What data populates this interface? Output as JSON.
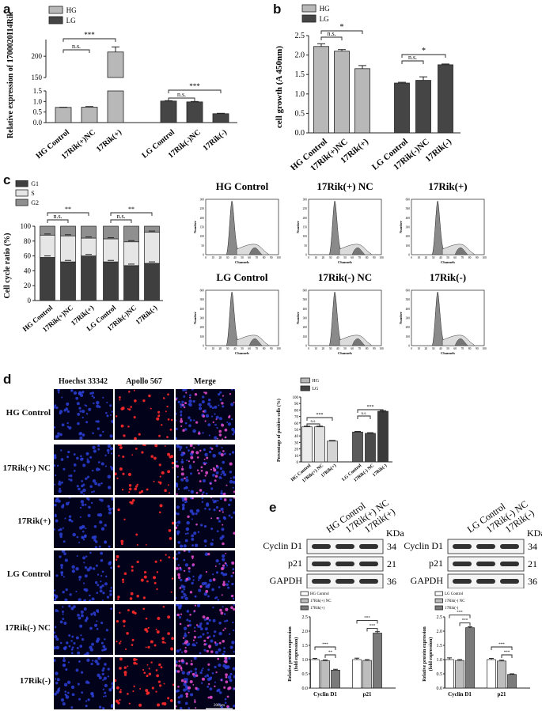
{
  "panels": {
    "a": "a",
    "b": "b",
    "c": "c",
    "d": "d",
    "e": "e"
  },
  "legend": {
    "hg": "HG",
    "lg": "LG",
    "g1": "G1",
    "s": "S",
    "g2": "G2"
  },
  "colors": {
    "hg": "#b8b8b8",
    "lg": "#454545",
    "g1": "#3f3f3f",
    "s": "#e6e6e6",
    "g2": "#8f8f8f",
    "white": "#ffffff",
    "dark": "#3a3a3a",
    "gray": "#9a9a9a"
  },
  "chart_data": [
    {
      "id": "a",
      "type": "bar",
      "ylabel": "Relative expression of 1700020I14Rik",
      "categories": [
        "HG Control",
        "17Rik(+)NC",
        "17Rik(+)",
        "LG Control",
        "17Rik(-)NC",
        "17Rik(-)"
      ],
      "values": [
        0.72,
        0.73,
        210,
        1.02,
        0.98,
        0.42
      ],
      "errors": [
        0.01,
        0.03,
        12,
        0.02,
        0.02,
        0.02
      ],
      "groups": [
        "HG",
        "HG",
        "HG",
        "LG",
        "LG",
        "LG"
      ],
      "y_break": {
        "lower": [
          0,
          1.5
        ],
        "upper": [
          150,
          230
        ]
      },
      "yticks_lower": [
        "0.0",
        "0.5",
        "1.0",
        "1.5"
      ],
      "yticks_upper": [
        "150",
        "200"
      ],
      "sig": [
        {
          "from": 0,
          "to": 1,
          "label": "n.s."
        },
        {
          "from": 0,
          "to": 2,
          "label": "***"
        },
        {
          "from": 3,
          "to": 4,
          "label": "n.s."
        },
        {
          "from": 3,
          "to": 5,
          "label": "***"
        }
      ]
    },
    {
      "id": "b",
      "type": "bar",
      "ylabel": "cell growth (A 450nm)",
      "categories": [
        "HG Control",
        "17Rik(+)NC",
        "17Rik(+)",
        "LG Control",
        "17Rik(-)NC",
        "17Rik(-)"
      ],
      "values": [
        2.22,
        2.1,
        1.65,
        1.28,
        1.35,
        1.75
      ],
      "errors": [
        0.07,
        0.04,
        0.08,
        0.02,
        0.09,
        0.02
      ],
      "groups": [
        "HG",
        "HG",
        "HG",
        "LG",
        "LG",
        "LG"
      ],
      "ylim": [
        0,
        2.5
      ],
      "yticks": [
        "0.0",
        "0.5",
        "1.0",
        "1.5",
        "2.0",
        "2.5"
      ],
      "sig": [
        {
          "from": 0,
          "to": 1,
          "label": "n.s."
        },
        {
          "from": 0,
          "to": 2,
          "label": "*"
        },
        {
          "from": 3,
          "to": 4,
          "label": "n.s."
        },
        {
          "from": 3,
          "to": 5,
          "label": "*"
        }
      ]
    },
    {
      "id": "c",
      "type": "bar",
      "ylabel": "Cell cycle ratio (%)",
      "categories": [
        "HG Control",
        "17Rik(+)NC",
        "17Rik(+)",
        "LG Control",
        "17Rik(-)NC",
        "17Rik(-)"
      ],
      "series": [
        {
          "name": "G1",
          "values": [
            58,
            52,
            60,
            52,
            47,
            50
          ]
        },
        {
          "name": "S",
          "values": [
            30,
            35,
            24,
            31,
            32,
            42
          ]
        },
        {
          "name": "G2",
          "values": [
            12,
            13,
            16,
            17,
            21,
            8
          ]
        }
      ],
      "ylim": [
        0,
        100
      ],
      "yticks": [
        "0",
        "20",
        "40",
        "60",
        "80",
        "100"
      ],
      "sig": [
        {
          "from": 0,
          "to": 1,
          "label": "n.s."
        },
        {
          "from": 0,
          "to": 2,
          "label": "**"
        },
        {
          "from": 3,
          "to": 4,
          "label": "n.s."
        },
        {
          "from": 3,
          "to": 5,
          "label": "**"
        }
      ]
    },
    {
      "id": "d",
      "type": "bar",
      "ylabel": "Percentage of positive cells (%)",
      "categories": [
        "HG Control",
        "17Rik(+) NC",
        "17Rik(+)",
        "LG Control",
        "17Rik(-) NC",
        "17Rik(-)"
      ],
      "values": [
        54,
        54,
        32,
        46,
        44,
        78
      ],
      "errors": [
        1,
        1,
        1,
        1,
        1,
        1
      ],
      "groups": [
        "HG",
        "HG",
        "HG",
        "LG",
        "LG",
        "LG"
      ],
      "ylim": [
        0,
        100
      ],
      "yticks": [
        "0",
        "10",
        "20",
        "30",
        "40",
        "50",
        "60",
        "70",
        "80",
        "90",
        "100"
      ],
      "sig": [
        {
          "from": 0,
          "to": 1,
          "label": "n.s."
        },
        {
          "from": 0,
          "to": 2,
          "label": "***"
        },
        {
          "from": 3,
          "to": 4,
          "label": "n.s."
        },
        {
          "from": 3,
          "to": 5,
          "label": "***"
        }
      ]
    },
    {
      "id": "e1",
      "type": "bar",
      "ylabel": "Relative protein expression (fold expression)",
      "categories": [
        "Cyclin D1",
        "p21"
      ],
      "series": [
        {
          "name": "HG Control",
          "values": [
            1.0,
            1.0
          ],
          "errors": [
            0.04,
            0.05
          ]
        },
        {
          "name": "17Rik(+) NC",
          "values": [
            0.96,
            0.97
          ],
          "errors": [
            0.03,
            0.03
          ]
        },
        {
          "name": "17Rik(+)",
          "values": [
            0.63,
            1.93
          ],
          "errors": [
            0.03,
            0.05
          ]
        }
      ],
      "ylim": [
        0,
        2.5
      ],
      "yticks": [
        "0.0",
        "0.5",
        "1.0",
        "1.5",
        "2.0",
        "2.5"
      ],
      "sig": [
        {
          "group": 0,
          "from": 0,
          "to": 2,
          "label": "***"
        },
        {
          "group": 0,
          "from": 1,
          "to": 2,
          "label": "**"
        },
        {
          "group": 1,
          "from": 0,
          "to": 2,
          "label": "***"
        },
        {
          "group": 1,
          "from": 1,
          "to": 2,
          "label": "***"
        }
      ]
    },
    {
      "id": "e2",
      "type": "bar",
      "ylabel": "Relative protein expression (fold expression)",
      "categories": [
        "Cyclin D1",
        "p21"
      ],
      "series": [
        {
          "name": "LG Control",
          "values": [
            1.0,
            1.0
          ],
          "errors": [
            0.06,
            0.04
          ]
        },
        {
          "name": "17Rik(-) NC",
          "values": [
            0.97,
            0.95
          ],
          "errors": [
            0.03,
            0.03
          ]
        },
        {
          "name": "17Rik(-)",
          "values": [
            2.12,
            0.48
          ],
          "errors": [
            0.03,
            0.02
          ]
        }
      ],
      "ylim": [
        0,
        2.5
      ],
      "yticks": [
        "0.0",
        "0.5",
        "1.0",
        "1.5",
        "2.0",
        "2.5"
      ],
      "sig": [
        {
          "group": 0,
          "from": 0,
          "to": 2,
          "label": "***"
        },
        {
          "group": 0,
          "from": 1,
          "to": 2,
          "label": "***"
        },
        {
          "group": 1,
          "from": 0,
          "to": 2,
          "label": "***"
        },
        {
          "group": 1,
          "from": 1,
          "to": 2,
          "label": "***"
        }
      ]
    }
  ],
  "flow": {
    "titles": [
      "HG Control",
      "17Rik(+) NC",
      "17Rik(+)",
      "LG Control",
      "17Rik(-) NC",
      "17Rik(-)"
    ],
    "ylabel": "Number",
    "xlabel": "Channels",
    "xticks": [
      "0",
      "10",
      "20",
      "30",
      "40",
      "50",
      "60",
      "70",
      "80",
      "90",
      "100"
    ],
    "yticks_by_panel": [
      [
        "0",
        "50",
        "100",
        "150",
        "200",
        "250",
        "300"
      ],
      [
        "0",
        "50",
        "100",
        "150",
        "200",
        "250",
        "300"
      ],
      [
        "0",
        "100",
        "200",
        "300",
        "400",
        "500",
        "600"
      ],
      [
        "0",
        "100",
        "200",
        "300",
        "400",
        "500",
        "600"
      ],
      [
        "0",
        "100",
        "200",
        "300",
        "400",
        "500",
        "600"
      ],
      [
        "0",
        "100",
        "200",
        "300",
        "400",
        "500",
        "600"
      ]
    ]
  },
  "micro": {
    "columns": [
      "Hoechst 33342",
      "Apollo 567",
      "Merge"
    ],
    "rows": [
      "HG Control",
      "17Rik(+) NC",
      "17Rik(+)",
      "LG Control",
      "17Rik(-) NC",
      "17Rik(-)"
    ],
    "red_density": [
      0.55,
      0.75,
      0.25,
      0.5,
      0.6,
      0.8
    ],
    "scale_bar": "200μm"
  },
  "western": {
    "left": {
      "lanes": [
        "HG Control",
        "17Rik(+) NC",
        "17Rik(+)"
      ],
      "unit": "KDa",
      "bands": [
        {
          "name": "Cyclin D1",
          "kda": "34"
        },
        {
          "name": "p21",
          "kda": "21"
        },
        {
          "name": "GAPDH",
          "kda": "36"
        }
      ]
    },
    "right": {
      "lanes": [
        "LG Control",
        "17Rik(-) NC",
        "17Rik(-)"
      ],
      "unit": "KDa",
      "bands": [
        {
          "name": "Cyclin D1",
          "kda": "34"
        },
        {
          "name": "p21",
          "kda": "21"
        },
        {
          "name": "GAPDH",
          "kda": "36"
        }
      ]
    }
  }
}
